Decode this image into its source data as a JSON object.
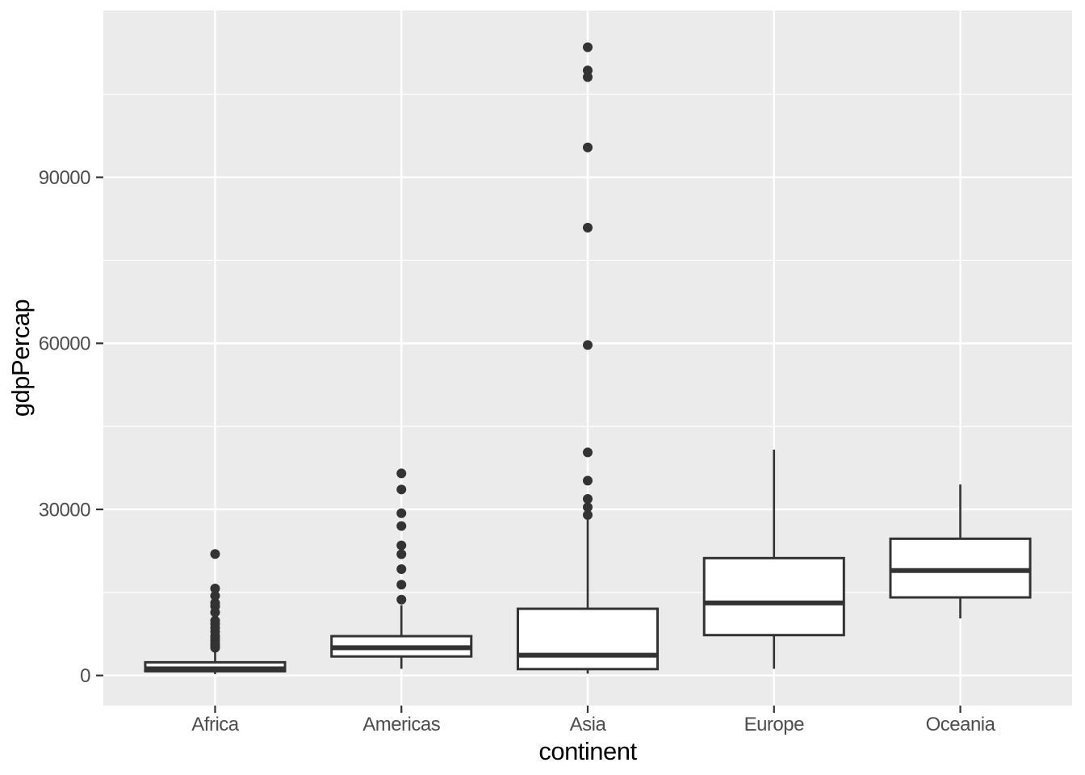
{
  "chart_data": {
    "type": "boxplot",
    "title": "",
    "xlabel": "continent",
    "ylabel": "gdpPercap",
    "categories": [
      "Africa",
      "Americas",
      "Asia",
      "Europe",
      "Oceania"
    ],
    "y_axis": {
      "tick_values": [
        0,
        30000,
        60000,
        90000
      ],
      "tick_labels": [
        "0",
        "30000",
        "60000",
        "90000"
      ],
      "minor_tick_values": [
        15000,
        45000,
        75000,
        105000
      ],
      "range": [
        -5400,
        120200
      ],
      "grid": "major-and-minor"
    },
    "series": [
      {
        "name": "Africa",
        "whisker_low": 241,
        "q1": 761,
        "median": 1192,
        "q3": 2377,
        "whisker_high": 4513,
        "outliers": [
          5000,
          5400,
          5800,
          6300,
          6800,
          7200,
          7900,
          8600,
          9300,
          9900,
          11400,
          12500,
          13100,
          14400,
          15700,
          21950
        ]
      },
      {
        "name": "Americas",
        "whisker_low": 1200,
        "q1": 3430,
        "median": 5000,
        "q3": 7100,
        "whisker_high": 12700,
        "outliers": [
          13700,
          16400,
          19200,
          21900,
          23500,
          27000,
          29300,
          33600,
          36500
        ]
      },
      {
        "name": "Asia",
        "whisker_low": 330,
        "q1": 1150,
        "median": 3650,
        "q3": 12050,
        "whisker_high": 28400,
        "outliers": [
          29000,
          30400,
          31900,
          35200,
          40300,
          59700,
          80900,
          95400,
          108100,
          109300,
          113500
        ]
      },
      {
        "name": "Europe",
        "whisker_low": 1200,
        "q1": 7290,
        "median": 13100,
        "q3": 21200,
        "whisker_high": 40800,
        "outliers": []
      },
      {
        "name": "Oceania",
        "whisker_low": 10300,
        "q1": 14100,
        "median": 18950,
        "q3": 24700,
        "whisker_high": 34500,
        "outliers": []
      }
    ],
    "legend": "none"
  },
  "colors": {
    "panel_background": "#EBEBEB",
    "grid_major": "#FFFFFF",
    "grid_minor": "#FFFFFF",
    "box_stroke": "#333333",
    "box_fill": "#FFFFFF",
    "outlier_point": "#333333",
    "tick_mark": "#333333",
    "tick_label": "#4D4D4D",
    "axis_title": "#000000",
    "figure_background": "#FFFFFF"
  }
}
